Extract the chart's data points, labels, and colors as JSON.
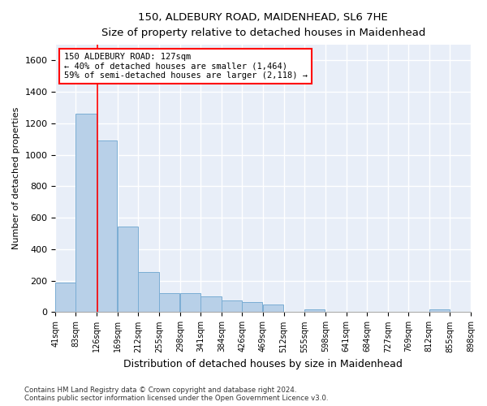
{
  "title1": "150, ALDEBURY ROAD, MAIDENHEAD, SL6 7HE",
  "title2": "Size of property relative to detached houses in Maidenhead",
  "xlabel": "Distribution of detached houses by size in Maidenhead",
  "ylabel": "Number of detached properties",
  "annotation_line1": "150 ALDEBURY ROAD: 127sqm",
  "annotation_line2": "← 40% of detached houses are smaller (1,464)",
  "annotation_line3": "59% of semi-detached houses are larger (2,118) →",
  "bar_color": "#b8d0e8",
  "bar_edge_color": "#7aadd4",
  "red_line_x": 127,
  "ylim": [
    0,
    1700
  ],
  "yticks": [
    0,
    200,
    400,
    600,
    800,
    1000,
    1200,
    1400,
    1600
  ],
  "footer1": "Contains HM Land Registry data © Crown copyright and database right 2024.",
  "footer2": "Contains public sector information licensed under the Open Government Licence v3.0.",
  "bin_edges": [
    41,
    83,
    126,
    169,
    212,
    255,
    298,
    341,
    384,
    426,
    469,
    512,
    555,
    598,
    641,
    684,
    727,
    769,
    812,
    855,
    898
  ],
  "bin_labels": [
    "41sqm",
    "83sqm",
    "126sqm",
    "169sqm",
    "212sqm",
    "255sqm",
    "298sqm",
    "341sqm",
    "384sqm",
    "426sqm",
    "469sqm",
    "512sqm",
    "555sqm",
    "598sqm",
    "641sqm",
    "684sqm",
    "727sqm",
    "769sqm",
    "812sqm",
    "855sqm",
    "898sqm"
  ],
  "bar_heights": [
    190,
    1260,
    1090,
    545,
    255,
    120,
    120,
    100,
    75,
    65,
    50,
    0,
    20,
    0,
    0,
    0,
    0,
    0,
    20,
    0,
    0
  ],
  "background_color": "#e8eef8",
  "fig_background": "#ffffff",
  "grid_color": "#ffffff"
}
